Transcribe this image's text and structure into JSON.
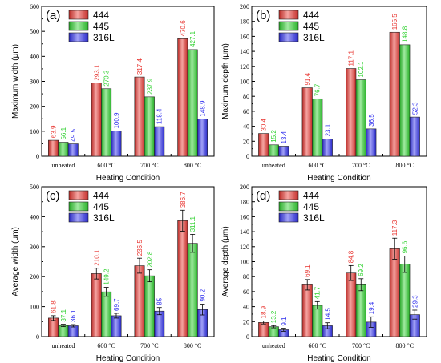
{
  "colors": {
    "444": "#e8342f",
    "445": "#2fd12f",
    "316L": "#2f2fee"
  },
  "chart_data": [
    {
      "type": "bar",
      "panel_label": "(a)",
      "categories": [
        "unheated",
        "600 °C",
        "700 °C",
        "800 °C"
      ],
      "series": [
        {
          "name": "444",
          "values": [
            63.9,
            293.1,
            317.4,
            470.6
          ]
        },
        {
          "name": "445",
          "values": [
            56.1,
            270.3,
            237.9,
            427.1
          ]
        },
        {
          "name": "316L",
          "values": [
            49.5,
            100.9,
            118.4,
            148.9
          ]
        }
      ],
      "xlabel": "Heating Condition",
      "ylabel": "Maximum width (μm)",
      "ylim": [
        0,
        600
      ],
      "yticks": [
        "0",
        "100",
        "200",
        "300",
        "400",
        "500",
        "600"
      ],
      "error_bars": false,
      "legend": "top-left"
    },
    {
      "type": "bar",
      "panel_label": "(b)",
      "categories": [
        "unheated",
        "600 °C",
        "700 °C",
        "800 °C"
      ],
      "series": [
        {
          "name": "444",
          "values": [
            30.4,
            91.4,
            117.1,
            165.5
          ]
        },
        {
          "name": "445",
          "values": [
            15.2,
            76.7,
            102.1,
            148.8
          ]
        },
        {
          "name": "316L",
          "values": [
            13.4,
            23.1,
            36.5,
            52.3
          ]
        }
      ],
      "xlabel": "Heating Condition",
      "ylabel": "Maximum depth (μm)",
      "ylim": [
        0,
        200
      ],
      "yticks": [
        "0",
        "20",
        "40",
        "60",
        "80",
        "100",
        "120",
        "140",
        "160",
        "180",
        "200"
      ],
      "error_bars": false,
      "legend": "top-left"
    },
    {
      "type": "bar",
      "panel_label": "(c)",
      "categories": [
        "unheated",
        "600 °C",
        "700 °C",
        "800 °C"
      ],
      "series": [
        {
          "name": "444",
          "values": [
            61.8,
            210.1,
            236.5,
            386.7
          ],
          "errors": [
            8,
            18,
            25,
            35
          ]
        },
        {
          "name": "445",
          "values": [
            37.1,
            149.2,
            202.8,
            311.1
          ],
          "errors": [
            4,
            15,
            20,
            30
          ]
        },
        {
          "name": "316L",
          "values": [
            36.1,
            69.7,
            85,
            90.2
          ],
          "errors": [
            4,
            8,
            12,
            18
          ]
        }
      ],
      "xlabel": "Heating Condition",
      "ylabel": "Average width (μm)",
      "ylim": [
        0,
        500
      ],
      "yticks": [
        "0",
        "100",
        "200",
        "300",
        "400",
        "500"
      ],
      "error_bars": true,
      "legend": "top-left"
    },
    {
      "type": "bar",
      "panel_label": "(d)",
      "categories": [
        "unheated",
        "600 °C",
        "700 °C",
        "800 °C"
      ],
      "series": [
        {
          "name": "444",
          "values": [
            18.9,
            69.1,
            84.8,
            117.3
          ],
          "errors": [
            2,
            7,
            10,
            14
          ]
        },
        {
          "name": "445",
          "values": [
            13.2,
            41.7,
            69.2,
            96.6
          ],
          "errors": [
            1.5,
            5,
            8,
            11
          ]
        },
        {
          "name": "316L",
          "values": [
            9.1,
            14.5,
            19.4,
            29.3
          ],
          "errors": [
            2,
            4,
            7,
            6
          ]
        }
      ],
      "xlabel": "Heating Condition",
      "ylabel": "Average depth (μm)",
      "ylim": [
        0,
        200
      ],
      "yticks": [
        "0",
        "20",
        "40",
        "60",
        "80",
        "100",
        "120",
        "140",
        "160",
        "180",
        "200"
      ],
      "error_bars": true,
      "legend": "top-left"
    }
  ]
}
